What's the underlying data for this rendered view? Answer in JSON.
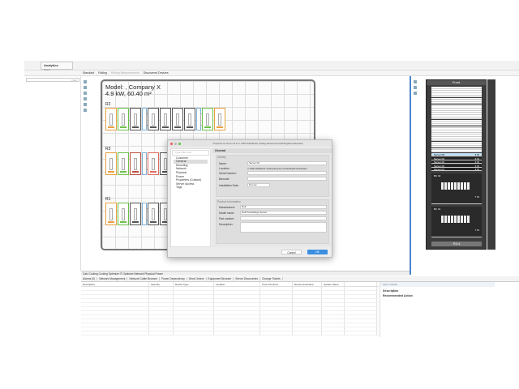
{
  "app": {
    "title": "Analytics",
    "subtitle": "Board"
  },
  "toolbar": {
    "tabs": [
      "Standard",
      "Rolling",
      "Rolling Measurements",
      "Discovered Devices"
    ]
  },
  "left_panel": {
    "search_placeholder": "Filter"
  },
  "floor_plan": {
    "model_line1": "Model: ,  Company X",
    "model_line2": "4.9 kW,  60.40 m²",
    "rows": [
      {
        "label": "R2",
        "racks": [
          "#e8a040",
          "#6cc04a",
          "#555",
          "#7bb0d8",
          "#555",
          "#555",
          "#555",
          "#555",
          "#7bb0d8",
          "#6cc04a",
          "#e8a040"
        ]
      },
      {
        "label": "R3",
        "racks": [
          "#e8a040",
          "#6cc04a",
          "#c05040",
          "#7bb0d8",
          "#e06a60",
          "#555",
          "#555",
          "#555",
          "#7bb0d8",
          "#6cc04a",
          "#e8a040"
        ]
      },
      {
        "label": "R1",
        "racks": [
          "#e8a040",
          "#6cc04a",
          "#555",
          "#7bb0d8",
          "#555",
          "#555",
          "#555",
          "#555",
          "#7bb0d8",
          "#6cc04a",
          "#e8a040"
        ]
      }
    ]
  },
  "dialog": {
    "title": "Properties for Server 03 at U: 25/R3.4/R3/Model: /Rolling Measurements/Rolling/Emea/Standard",
    "filter_placeholder": "Type Filter Text",
    "nav": [
      "Customer",
      "General",
      "Mounting",
      "Network",
      "Physical",
      "Power",
      "Properties (Custom)",
      "Server Access",
      "Tags"
    ],
    "selected_nav": "General",
    "section_title": "General",
    "identity_label": "Identity",
    "fields": {
      "name_label": "Name:",
      "name": "Server 03",
      "location_label": "Location:",
      "location": "U: 25/R3.4/R3/Model: /Rolling Measurements/Rolling/Emea/Standard",
      "serial_label": "Serial Number:",
      "serial": "",
      "barcode_label": "Barcode:",
      "barcode": "",
      "install_label": "Installation Date:",
      "install": "Not set"
    },
    "product_label": "Product Information",
    "product": {
      "manufacturer_label": "Manufacturer:",
      "manufacturer": "Dell",
      "model_label": "Model name:",
      "model": "Dell PowerEdge Server",
      "part_label": "Part number:",
      "part": "",
      "desc_label": "Description:",
      "desc": ""
    },
    "cancel": "Cancel",
    "ok": "OK"
  },
  "rack_view": {
    "header": "Front",
    "footer": "R3.4",
    "servers": [
      {
        "name": "Server 05",
        "power": "3 W"
      },
      {
        "name": "Server 04",
        "power": "3 W"
      },
      {
        "name": "Server 03",
        "power": "3 W"
      },
      {
        "name": "Server 02",
        "power": "3 W"
      },
      {
        "name": "Server 01",
        "power": "3 W"
      }
    ],
    "blade1": {
      "name": "BC 02",
      "power": "7 W"
    },
    "blade2": {
      "name": "BC 01",
      "power": "7 W"
    }
  },
  "bottom_tabs": "Calc Cooling  Cooling Optimize  IT Optimize  Network  Physical  Power",
  "alarm_tabs": [
    "Alarms (0)",
    "Network Management",
    "Network Cable Browser",
    "Power Dependency",
    "Work Orders",
    "Equipment Browser",
    "Server Discoveries",
    "Change Tickets"
  ],
  "alarm_table": {
    "columns": [
      "Description",
      "Severity",
      "Device Type",
      "Location",
      "Time Occurred",
      "Device Hostname",
      "System Name",
      ""
    ]
  },
  "alarm_details": {
    "title": "Alarm Details",
    "description": "Description",
    "action": "Recommended Action"
  },
  "colors": {
    "accent": "#4a86c8",
    "ok_button": "#3b8fe0"
  }
}
